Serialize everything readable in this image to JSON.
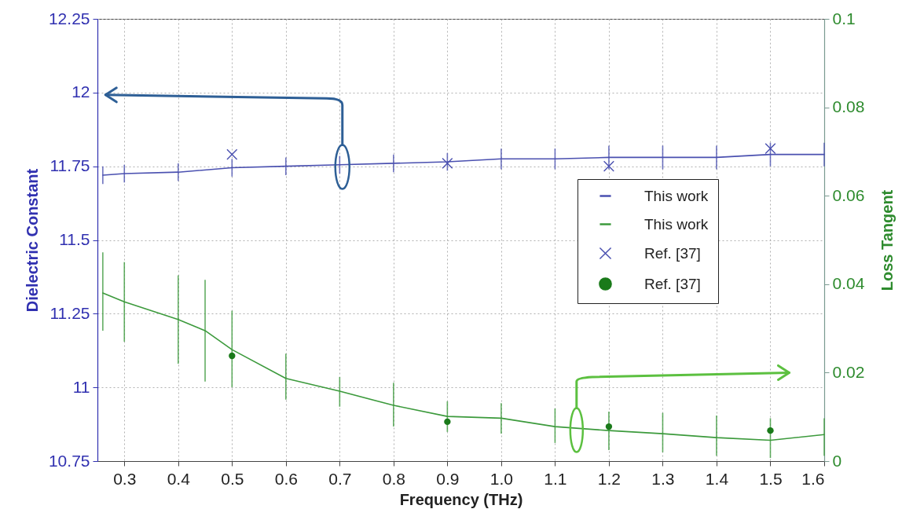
{
  "chart_data": {
    "type": "line",
    "xlabel": "Frequency (THz)",
    "ylabel": "Dielectric Constant",
    "y2label": "Loss Tangent",
    "xlim": [
      0.25,
      1.6
    ],
    "xticks": [
      0.3,
      0.4,
      0.5,
      0.6,
      0.7,
      0.8,
      0.9,
      {
        "value": 1,
        "label": "1.0"
      },
      1.1,
      1.2,
      1.3,
      1.4,
      1.5,
      1.6
    ],
    "ylim": [
      10.75,
      12.25
    ],
    "yticks": [
      10.75,
      11,
      11.25,
      11.5,
      11.75,
      12,
      12.25
    ],
    "y2lim": [
      0,
      0.1
    ],
    "y2ticks": [
      0,
      0.02,
      0.04,
      0.06,
      0.08,
      0.1
    ],
    "grid": true,
    "legend": "right",
    "series": [
      {
        "name": "This work",
        "color": "#4a50b0",
        "x": [
          0.26,
          0.3,
          0.4,
          0.5,
          0.6,
          0.7,
          0.8,
          0.9,
          1.0,
          1.1,
          1.2,
          1.3,
          1.4,
          1.5,
          1.6
        ],
        "values": [
          11.72,
          11.725,
          11.73,
          11.745,
          11.75,
          11.755,
          11.76,
          11.765,
          11.775,
          11.775,
          11.78,
          11.78,
          11.78,
          11.79,
          11.79
        ],
        "errors": [
          0.03,
          0.03,
          0.03,
          0.03,
          0.03,
          0.03,
          0.03,
          0.03,
          0.035,
          0.035,
          0.04,
          0.04,
          0.04,
          0.04,
          0.04
        ]
      },
      {
        "name": "This work",
        "axis": "y2",
        "color": "#3c9a3c",
        "x": [
          0.26,
          0.3,
          0.4,
          0.45,
          0.5,
          0.6,
          0.7,
          0.8,
          0.9,
          1.0,
          1.1,
          1.2,
          1.3,
          1.4,
          1.5,
          1.6
        ],
        "values": [
          0.038,
          0.036,
          0.032,
          0.0295,
          0.0252,
          0.0187,
          0.0158,
          0.0126,
          0.0101,
          0.0097,
          0.0078,
          0.0069,
          0.0062,
          0.0053,
          0.0047,
          0.006
        ],
        "errors": [
          [
            0.0295,
            0.0472
          ],
          [
            0.027,
            0.045
          ],
          [
            0.022,
            0.042
          ],
          [
            0.018,
            0.041
          ],
          [
            0.0167,
            0.034
          ],
          [
            0.0139,
            0.0243
          ],
          [
            0.0123,
            0.019
          ],
          [
            0.0078,
            0.0177
          ],
          [
            0.0066,
            0.0135
          ],
          [
            0.0062,
            0.0131
          ],
          [
            0.0041,
            0.0119
          ],
          [
            0.0025,
            0.0112
          ],
          [
            0.002,
            0.0109
          ],
          [
            0.0012,
            0.0103
          ],
          [
            0.0007,
            0.0097
          ],
          [
            0.0012,
            0.0097
          ]
        ]
      },
      {
        "name": "Ref. [37]",
        "type": "scatter",
        "marker": "cross",
        "color": "#4a50b0",
        "x": [
          0.5,
          0.9,
          1.2,
          1.5
        ],
        "values": [
          11.79,
          11.76,
          11.75,
          11.81
        ]
      },
      {
        "name": "Ref. [37]",
        "type": "scatter",
        "marker": "circle",
        "axis": "y2",
        "color": "#1a7a1a",
        "x": [
          0.5,
          0.9,
          1.2,
          1.5
        ],
        "values": [
          0.0238,
          0.0089,
          0.0078,
          0.0069
        ]
      }
    ]
  }
}
